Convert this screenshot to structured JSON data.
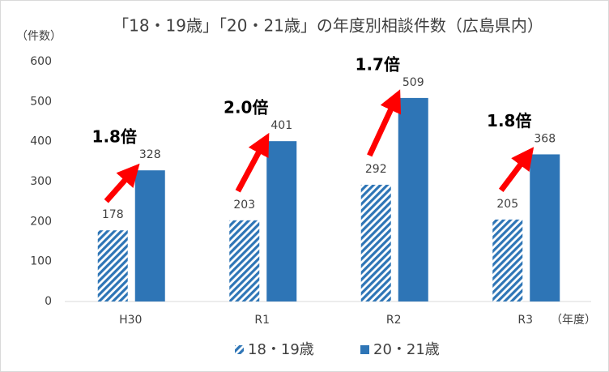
{
  "chart_data": {
    "type": "bar",
    "title": "「18・19歳」「20・21歳」の年度別相談件数（広島県内）",
    "y_label": "（件数）",
    "x_label": "（年度）",
    "categories": [
      "H30",
      "R1",
      "R2",
      "R3"
    ],
    "series": [
      {
        "name": "18・19歳",
        "color": "#2e75b6",
        "pattern": "diagonal-hatch",
        "values": [
          178,
          203,
          292,
          205
        ]
      },
      {
        "name": "20・21歳",
        "color": "#2e75b6",
        "values": [
          328,
          401,
          509,
          368
        ]
      }
    ],
    "annotations": [
      {
        "text": "1.8倍"
      },
      {
        "text": "2.0倍"
      },
      {
        "text": "1.7倍"
      },
      {
        "text": "1.8倍"
      }
    ],
    "annotation_color": "#ff0000",
    "ylim": [
      0,
      600
    ],
    "yticks": [
      0,
      100,
      200,
      300,
      400,
      500,
      600
    ],
    "grid": false,
    "legend": "bottom"
  }
}
